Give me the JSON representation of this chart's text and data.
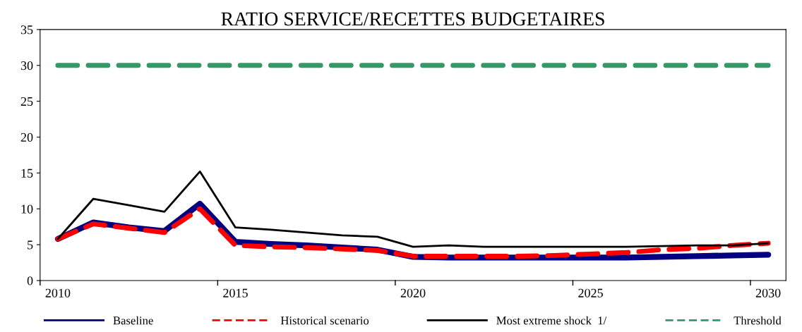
{
  "chart_data": {
    "type": "line",
    "title": "RATIO SERVICE/RECETTES BUDGETAIRES",
    "categories": [
      "2010",
      null,
      null,
      null,
      null,
      "2015",
      null,
      null,
      null,
      null,
      "2020",
      null,
      null,
      null,
      null,
      "2025",
      null,
      null,
      null,
      null,
      "2030"
    ],
    "series": [
      {
        "name": "Baseline",
        "color": "#000080",
        "line_style": "solid",
        "values": [
          5.8,
          8.1,
          7.4,
          6.9,
          10.7,
          5.4,
          5.1,
          4.9,
          4.6,
          4.3,
          3.3,
          3.2,
          3.2,
          3.2,
          3.2,
          3.2,
          3.2,
          3.3,
          3.4,
          3.5,
          3.6
        ]
      },
      {
        "name": "Historical scenario",
        "color": "#ff0000",
        "line_style": "dashed",
        "values": [
          5.8,
          7.9,
          7.3,
          6.7,
          10.0,
          4.9,
          4.7,
          4.6,
          4.4,
          4.2,
          3.4,
          3.4,
          3.4,
          3.4,
          3.5,
          3.7,
          3.9,
          4.3,
          4.5,
          4.9,
          5.2
        ]
      },
      {
        "name": "Most extreme shock  1/",
        "color": "#000000",
        "line_style": "solid",
        "values": [
          5.8,
          11.4,
          10.5,
          9.6,
          15.2,
          7.4,
          7.1,
          6.7,
          6.3,
          6.1,
          4.7,
          4.9,
          4.7,
          4.7,
          4.7,
          4.7,
          4.7,
          4.8,
          4.9,
          4.9,
          5.2
        ]
      },
      {
        "name": "Threshold",
        "color": "#339966",
        "line_style": "dashed",
        "values": [
          30,
          30,
          30,
          30,
          30,
          30,
          30,
          30,
          30,
          30,
          30,
          30,
          30,
          30,
          30,
          30,
          30,
          30,
          30,
          30,
          30
        ]
      }
    ],
    "ylim": [
      0,
      35
    ],
    "yticks": [
      0,
      5,
      10,
      15,
      20,
      25,
      30,
      35
    ],
    "grid": false,
    "legend": "bottom",
    "marker": "none"
  }
}
